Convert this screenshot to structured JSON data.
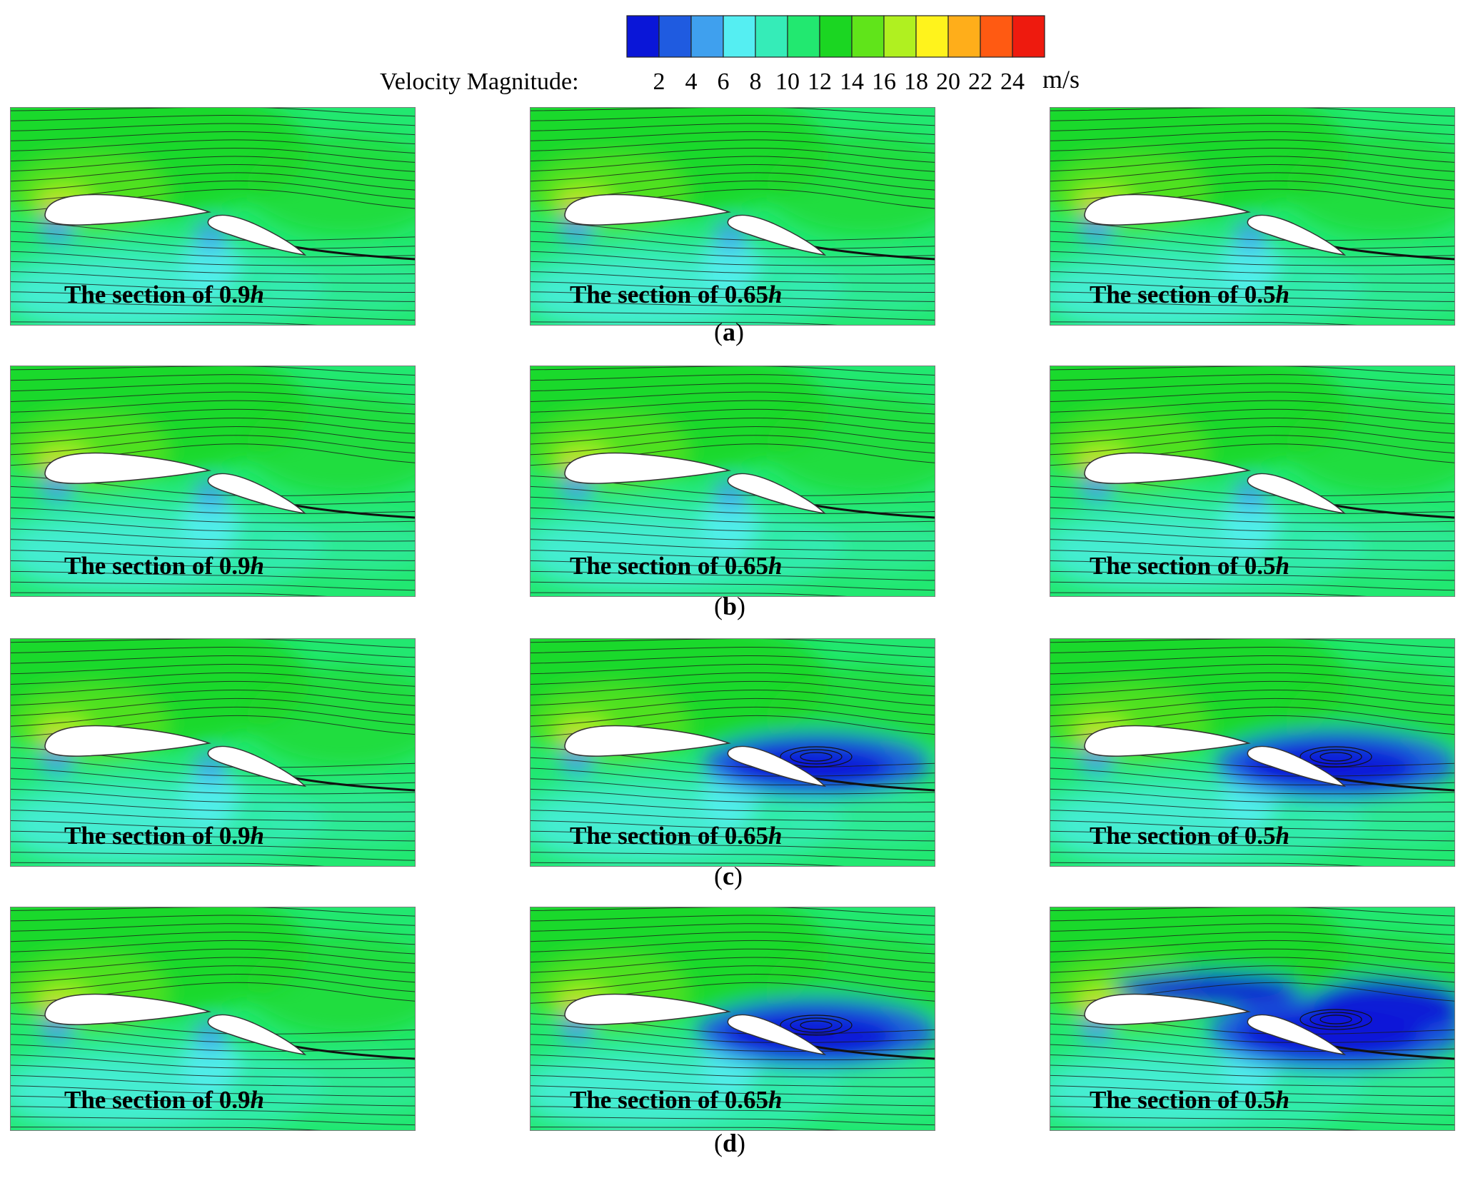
{
  "colorbar": {
    "label": "Velocity Magnitude:",
    "ticks": [
      "2",
      "4",
      "6",
      "8",
      "10",
      "12",
      "14",
      "16",
      "18",
      "20",
      "22",
      "24"
    ],
    "unit": "m/s",
    "colors": [
      "#0a16d8",
      "#1f5be0",
      "#3fa0ee",
      "#55eef2",
      "#35ecb8",
      "#22e870",
      "#1bd622",
      "#60e41a",
      "#b0f020",
      "#fff31c",
      "#ffae1a",
      "#ff5a12",
      "#ee1a0e"
    ]
  },
  "rows": [
    {
      "label": "(a)",
      "letter": "a",
      "panels": [
        {
          "text": "The section of 0.9",
          "italic": "h",
          "separation": 0
        },
        {
          "text": "The section of 0.65",
          "italic": "h",
          "separation": 0
        },
        {
          "text": "The section of 0.5",
          "italic": "h",
          "separation": 0
        }
      ]
    },
    {
      "label": "(b)",
      "letter": "b",
      "panels": [
        {
          "text": "The section of 0.9",
          "italic": "h",
          "separation": 0
        },
        {
          "text": "The section of 0.65",
          "italic": "h",
          "separation": 0
        },
        {
          "text": "The section of 0.5",
          "italic": "h",
          "separation": 0
        }
      ]
    },
    {
      "label": "(c)",
      "letter": "c",
      "panels": [
        {
          "text": "The section of 0.9",
          "italic": "h",
          "separation": 0
        },
        {
          "text": "The section of 0.65",
          "italic": "h",
          "separation": 2
        },
        {
          "text": "The section of 0.5",
          "italic": "h",
          "separation": 3
        }
      ]
    },
    {
      "label": "(d)",
      "letter": "d",
      "panels": [
        {
          "text": "The section of 0.9",
          "italic": "h",
          "separation": 0
        },
        {
          "text": "The section of 0.65",
          "italic": "h",
          "separation": 3
        },
        {
          "text": "The section of 0.5",
          "italic": "h",
          "separation": 4
        }
      ]
    }
  ]
}
